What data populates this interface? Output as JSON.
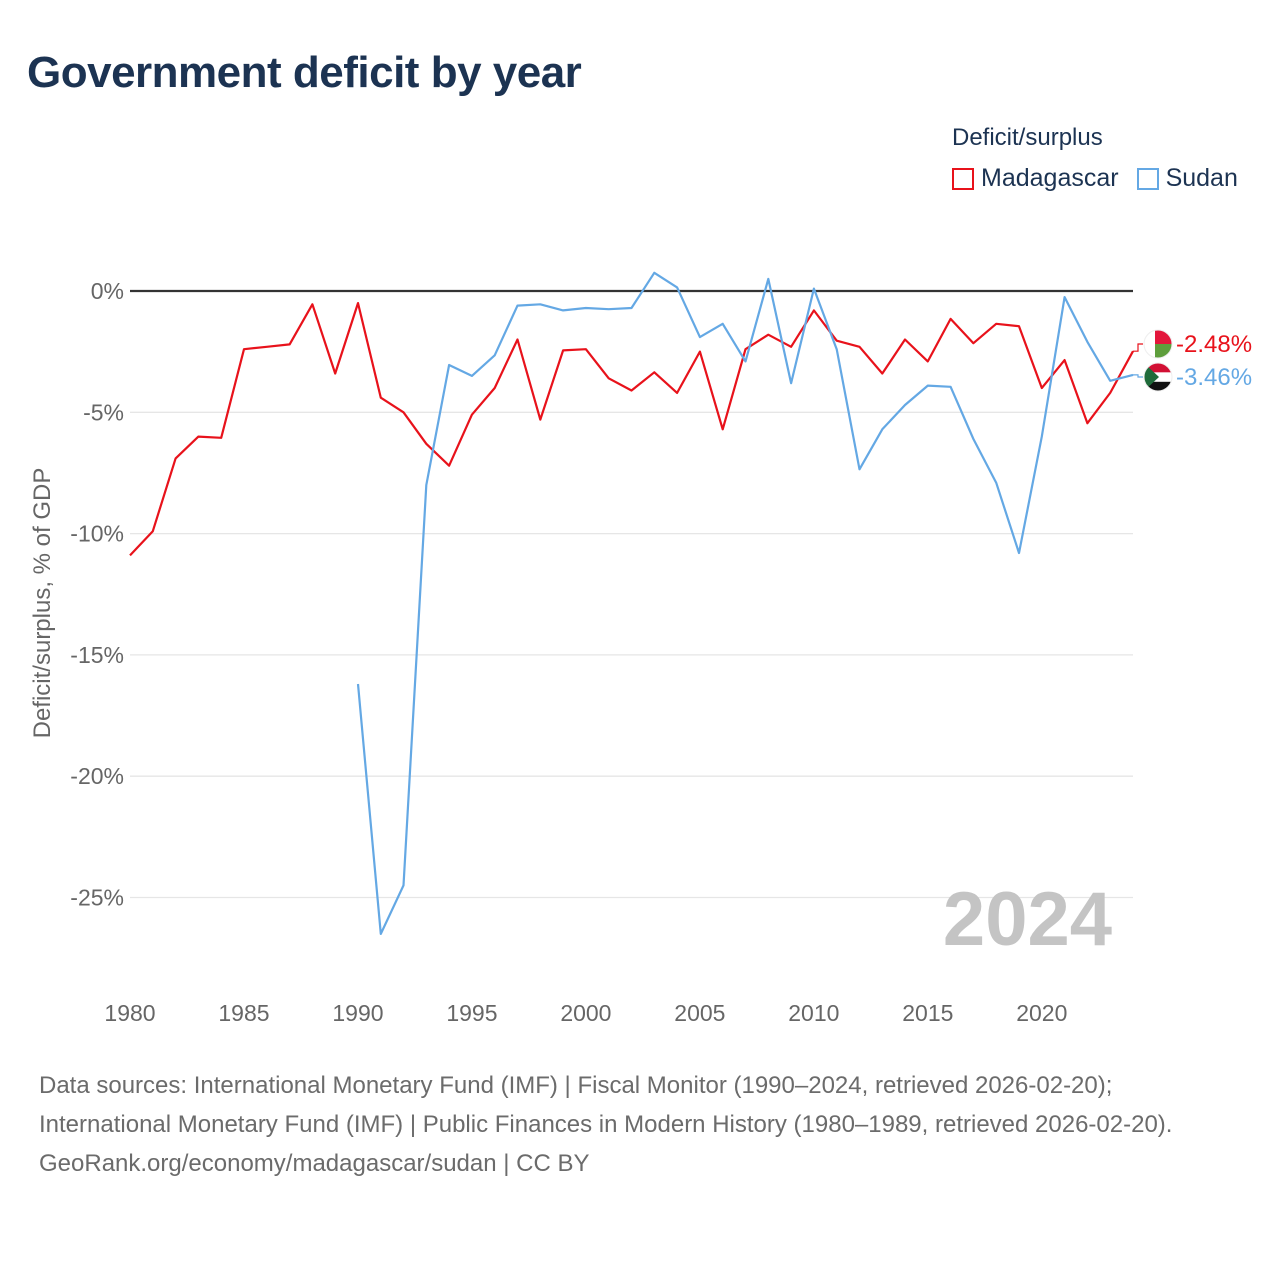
{
  "title": "Government deficit by year",
  "legend": {
    "title": "Deficit/surplus",
    "items": [
      {
        "label": "Madagascar",
        "color": "#e8121b"
      },
      {
        "label": "Sudan",
        "color": "#64a8e4"
      }
    ]
  },
  "year_watermark": "2024",
  "footer": {
    "sources": "Data sources: International Monetary Fund (IMF) | Fiscal Monitor (1990–2024, retrieved 2026-02-20); International Monetary Fund (IMF) | Public Finances in Modern History (1980–1989, retrieved 2026-02-20).",
    "link": "GeoRank.org/economy/madagascar/sudan | CC BY"
  },
  "chart_data": {
    "type": "line",
    "title": "Government deficit by year",
    "xlabel": "",
    "ylabel": "Deficit/surplus, % of GDP",
    "xlim": [
      1980,
      2024
    ],
    "ylim": [
      -28,
      2
    ],
    "xticks": [
      1980,
      1985,
      1990,
      1995,
      2000,
      2005,
      2010,
      2015,
      2020
    ],
    "xtick_labels": [
      "1980",
      "1985",
      "1990",
      "1995",
      "2000",
      "2005",
      "2010",
      "2015",
      "2020"
    ],
    "yticks": [
      0,
      -5,
      -10,
      -15,
      -20,
      -25
    ],
    "ytick_labels": [
      "0%",
      "-5%",
      "-10%",
      "-15%",
      "-20%",
      "-25%"
    ],
    "zero_line": true,
    "series": [
      {
        "name": "Madagascar",
        "color": "#e8121b",
        "end_label": "-2.48%",
        "x": [
          1980,
          1981,
          1982,
          1983,
          1984,
          1985,
          1986,
          1987,
          1988,
          1989,
          1990,
          1991,
          1992,
          1993,
          1994,
          1995,
          1996,
          1997,
          1998,
          1999,
          2000,
          2001,
          2002,
          2003,
          2004,
          2005,
          2006,
          2007,
          2008,
          2009,
          2010,
          2011,
          2012,
          2013,
          2014,
          2015,
          2016,
          2017,
          2018,
          2019,
          2020,
          2021,
          2022,
          2023,
          2024
        ],
        "values": [
          -10.9,
          -9.9,
          -6.9,
          -6.0,
          -6.05,
          -2.4,
          -2.3,
          -2.2,
          -0.55,
          -3.4,
          -0.5,
          -4.4,
          -5.0,
          -6.3,
          -7.2,
          -5.1,
          -4.0,
          -2.0,
          -5.3,
          -2.45,
          -2.4,
          -3.6,
          -4.1,
          -3.35,
          -4.2,
          -2.5,
          -5.7,
          -2.4,
          -1.8,
          -2.3,
          -0.8,
          -2.05,
          -2.3,
          -3.4,
          -2.0,
          -2.9,
          -1.15,
          -2.15,
          -1.35,
          -1.45,
          -4.0,
          -2.85,
          -5.45,
          -4.2,
          -2.48
        ]
      },
      {
        "name": "Sudan",
        "color": "#64a8e4",
        "end_label": "-3.46%",
        "x": [
          1990,
          1991,
          1992,
          1993,
          1994,
          1995,
          1996,
          1997,
          1998,
          1999,
          2000,
          2001,
          2002,
          2003,
          2004,
          2005,
          2006,
          2007,
          2008,
          2009,
          2010,
          2011,
          2012,
          2013,
          2014,
          2015,
          2016,
          2017,
          2018,
          2019,
          2020,
          2021,
          2022,
          2023,
          2024
        ],
        "values": [
          -16.2,
          -26.5,
          -24.5,
          -8.0,
          -3.05,
          -3.5,
          -2.65,
          -0.6,
          -0.55,
          -0.8,
          -0.7,
          -0.75,
          -0.7,
          0.75,
          0.15,
          -1.9,
          -1.35,
          -2.9,
          0.5,
          -3.8,
          0.1,
          -2.4,
          -7.35,
          -5.7,
          -4.7,
          -3.9,
          -3.95,
          -6.1,
          -7.9,
          -10.8,
          -6.0,
          -0.25,
          -2.1,
          -3.7,
          -3.46
        ]
      }
    ]
  }
}
